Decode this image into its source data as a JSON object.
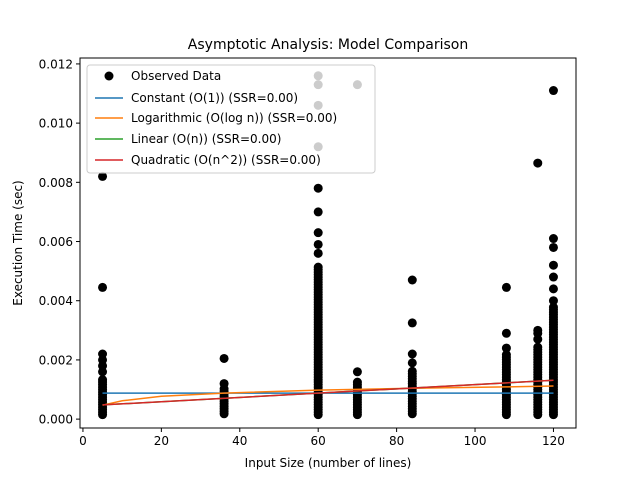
{
  "chart_data": {
    "type": "scatter",
    "title": "Asymptotic Analysis: Model Comparison",
    "xlabel": "Input Size (number of lines)",
    "ylabel": "Execution Time (sec)",
    "xlim": [
      -0.75,
      125.75
    ],
    "ylim": [
      -0.0003,
      0.0122
    ],
    "xticks": [
      0,
      20,
      40,
      60,
      80,
      100,
      120
    ],
    "yticks": [
      0.0,
      0.002,
      0.004,
      0.006,
      0.008,
      0.01,
      0.012
    ],
    "ytick_labels": [
      "0.000",
      "0.002",
      "0.004",
      "0.006",
      "0.008",
      "0.010",
      "0.012"
    ],
    "grid": false,
    "legend_position": "upper-left",
    "observed": {
      "name": "Observed Data",
      "color": "#000000",
      "columns": [
        {
          "x": 5,
          "ymin": 0.00015,
          "ymax": 0.0014,
          "outliers": [
            0.0016,
            0.0018,
            0.002,
            0.0022,
            0.00445,
            0.0082
          ]
        },
        {
          "x": 36,
          "ymin": 0.00018,
          "ymax": 0.0011,
          "outliers": [
            0.0012,
            0.00205
          ]
        },
        {
          "x": 60,
          "ymin": 0.00015,
          "ymax": 0.0052,
          "outliers": [
            0.0056,
            0.0059,
            0.0063,
            0.007,
            0.0078,
            0.0092,
            0.0106,
            0.0113,
            0.0116
          ]
        },
        {
          "x": 70,
          "ymin": 0.00015,
          "ymax": 0.0013,
          "outliers": [
            0.0016,
            0.0113
          ]
        },
        {
          "x": 84,
          "ymin": 0.00018,
          "ymax": 0.0017,
          "outliers": [
            0.0019,
            0.0022,
            0.00325,
            0.0047
          ]
        },
        {
          "x": 108,
          "ymin": 0.00015,
          "ymax": 0.0022,
          "outliers": [
            0.0024,
            0.0029,
            0.00445
          ]
        },
        {
          "x": 116,
          "ymin": 0.00015,
          "ymax": 0.0025,
          "outliers": [
            0.0027,
            0.0029,
            0.003,
            0.00865
          ]
        },
        {
          "x": 120,
          "ymin": 0.00015,
          "ymax": 0.0038,
          "outliers": [
            0.004,
            0.0044,
            0.0048,
            0.0052,
            0.0058,
            0.0061,
            0.0111
          ]
        }
      ]
    },
    "series": [
      {
        "name": "Constant (O(1)) (SSR=0.00)",
        "color": "#1f77b4",
        "x": [
          5,
          120
        ],
        "y": [
          0.00088,
          0.00088
        ]
      },
      {
        "name": "Logarithmic (O(log n)) (SSR=0.00)",
        "color": "#ff7f0e",
        "x": [
          5,
          10,
          20,
          36,
          60,
          84,
          108,
          120
        ],
        "y": [
          0.00047,
          0.00062,
          0.00077,
          0.00088,
          0.00098,
          0.00104,
          0.00109,
          0.00112
        ]
      },
      {
        "name": "Linear (O(n)) (SSR=0.00)",
        "color": "#2ca02c",
        "x": [
          5,
          120
        ],
        "y": [
          0.00048,
          0.00131
        ]
      },
      {
        "name": "Quadratic (O(n^2)) (SSR=0.00)",
        "color": "#d62728",
        "x": [
          5,
          120
        ],
        "y": [
          0.00048,
          0.00131
        ]
      }
    ]
  }
}
